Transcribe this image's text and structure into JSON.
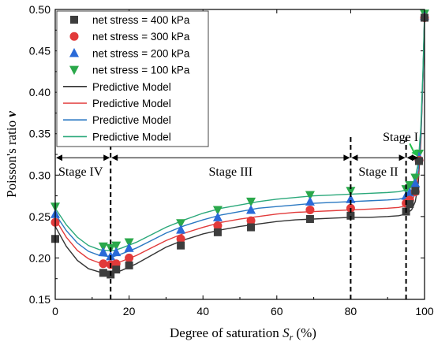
{
  "chart_data": {
    "type": "scatter",
    "xlabel": "Degree of saturation",
    "xlabel_symbol": "S",
    "xlabel_subscript": "r",
    "xlabel_unit": "(%)",
    "ylabel": "Poisson's ratio",
    "ylabel_symbol": "ν",
    "xlim": [
      0,
      100
    ],
    "ylim": [
      0.15,
      0.5
    ],
    "xticks": [
      0,
      20,
      40,
      60,
      80,
      100
    ],
    "yticks": [
      0.15,
      0.2,
      0.25,
      0.3,
      0.35,
      0.4,
      0.45,
      0.5
    ],
    "grid": false,
    "legend_position": "top-left",
    "series": [
      {
        "name": "net stress = 400 kPa",
        "marker": "square",
        "color": "#3d3d3d",
        "x": [
          0,
          13,
          15,
          16.5,
          20,
          34,
          44,
          53,
          69,
          80,
          95,
          96,
          97.5,
          98.5,
          100
        ],
        "y": [
          0.223,
          0.182,
          0.18,
          0.186,
          0.191,
          0.215,
          0.231,
          0.237,
          0.247,
          0.251,
          0.256,
          0.265,
          0.281,
          0.317,
          0.49
        ]
      },
      {
        "name": "net stress = 300 kPa",
        "marker": "circle",
        "color": "#e23a3a",
        "x": [
          0,
          13,
          15,
          16.5,
          20,
          34,
          44,
          53,
          69,
          80,
          95,
          96,
          97.5,
          98.5,
          100
        ],
        "y": [
          0.243,
          0.193,
          0.192,
          0.193,
          0.2,
          0.223,
          0.239,
          0.245,
          0.258,
          0.26,
          0.266,
          0.27,
          0.28,
          0.318,
          0.49
        ]
      },
      {
        "name": "net stress = 200 kPa",
        "marker": "triangle-up",
        "color": "#2a6ad8",
        "x": [
          0,
          13,
          15,
          16.5,
          20,
          34,
          44,
          53,
          69,
          80,
          95,
          96,
          97.5,
          98.5,
          100
        ],
        "y": [
          0.253,
          0.207,
          0.202,
          0.207,
          0.212,
          0.234,
          0.249,
          0.258,
          0.268,
          0.271,
          0.275,
          0.279,
          0.29,
          0.322,
          0.492
        ]
      },
      {
        "name": "net stress = 100 kPa",
        "marker": "triangle-down",
        "color": "#2aa84a",
        "x": [
          0,
          13,
          15,
          16.5,
          20,
          34,
          44,
          53,
          69,
          80,
          95,
          96,
          97.5,
          98.5,
          100
        ],
        "y": [
          0.262,
          0.214,
          0.212,
          0.215,
          0.219,
          0.242,
          0.258,
          0.268,
          0.276,
          0.281,
          0.283,
          0.288,
          0.297,
          0.326,
          0.495
        ]
      }
    ],
    "models": [
      {
        "name": "Predictive Model",
        "color": "#333333",
        "x": [
          0,
          3,
          6,
          9,
          12,
          14,
          16,
          18,
          22,
          26,
          30,
          35,
          40,
          45,
          50,
          55,
          60,
          65,
          70,
          75,
          80,
          85,
          90,
          93,
          95,
          96.5,
          97.5,
          98.3,
          99,
          99.6,
          100
        ],
        "y": [
          0.238,
          0.214,
          0.197,
          0.187,
          0.183,
          0.182,
          0.182,
          0.185,
          0.193,
          0.203,
          0.213,
          0.222,
          0.229,
          0.234,
          0.238,
          0.241,
          0.244,
          0.246,
          0.247,
          0.248,
          0.249,
          0.249,
          0.25,
          0.251,
          0.253,
          0.258,
          0.268,
          0.29,
          0.34,
          0.42,
          0.49
        ]
      },
      {
        "name": "Predictive Model",
        "color": "#e23a3a",
        "x": [
          0,
          3,
          6,
          9,
          12,
          14,
          16,
          18,
          22,
          26,
          30,
          35,
          40,
          45,
          50,
          55,
          60,
          65,
          70,
          75,
          80,
          85,
          90,
          93,
          95,
          96.5,
          97.5,
          98.3,
          99,
          99.6,
          100
        ],
        "y": [
          0.247,
          0.225,
          0.209,
          0.199,
          0.194,
          0.193,
          0.193,
          0.196,
          0.203,
          0.212,
          0.221,
          0.23,
          0.237,
          0.243,
          0.247,
          0.25,
          0.253,
          0.255,
          0.256,
          0.257,
          0.258,
          0.259,
          0.26,
          0.261,
          0.263,
          0.268,
          0.278,
          0.298,
          0.345,
          0.422,
          0.49
        ]
      },
      {
        "name": "Predictive Model",
        "color": "#2a78c2",
        "x": [
          0,
          3,
          6,
          9,
          12,
          14,
          16,
          18,
          22,
          26,
          30,
          35,
          40,
          45,
          50,
          55,
          60,
          65,
          70,
          75,
          80,
          85,
          90,
          93,
          95,
          96.5,
          97.5,
          98.3,
          99,
          99.6,
          100
        ],
        "y": [
          0.253,
          0.233,
          0.218,
          0.208,
          0.203,
          0.202,
          0.202,
          0.205,
          0.212,
          0.221,
          0.23,
          0.239,
          0.246,
          0.252,
          0.256,
          0.26,
          0.262,
          0.264,
          0.266,
          0.267,
          0.268,
          0.269,
          0.27,
          0.271,
          0.273,
          0.278,
          0.288,
          0.306,
          0.35,
          0.425,
          0.492
        ]
      },
      {
        "name": "Predictive Model",
        "color": "#2aa87a",
        "x": [
          0,
          3,
          6,
          9,
          12,
          14,
          16,
          18,
          22,
          26,
          30,
          35,
          40,
          45,
          50,
          55,
          60,
          65,
          70,
          75,
          80,
          85,
          90,
          93,
          95,
          96.5,
          97.5,
          98.3,
          99,
          99.6,
          100
        ],
        "y": [
          0.26,
          0.24,
          0.225,
          0.215,
          0.21,
          0.209,
          0.209,
          0.212,
          0.219,
          0.228,
          0.237,
          0.246,
          0.254,
          0.26,
          0.264,
          0.268,
          0.271,
          0.273,
          0.275,
          0.276,
          0.277,
          0.278,
          0.279,
          0.28,
          0.282,
          0.287,
          0.297,
          0.315,
          0.358,
          0.43,
          0.495
        ]
      }
    ],
    "stage_dividers_x": [
      15,
      80,
      95
    ],
    "stage_arrow_y": 0.321,
    "stages": [
      {
        "label": "Stage IV",
        "x": 0,
        "y": 0.305
      },
      {
        "label": "Stage III",
        "x": 47.5,
        "y": 0.305
      },
      {
        "label": "Stage II",
        "x": 87.5,
        "y": 0.305
      },
      {
        "label": "Stage I",
        "x": 93.5,
        "y": 0.347
      }
    ],
    "stage_pointer": {
      "from_x": 96,
      "from_y": 0.338,
      "to_x": 98.3,
      "to_y": 0.322,
      "color": "#22c04a"
    }
  }
}
